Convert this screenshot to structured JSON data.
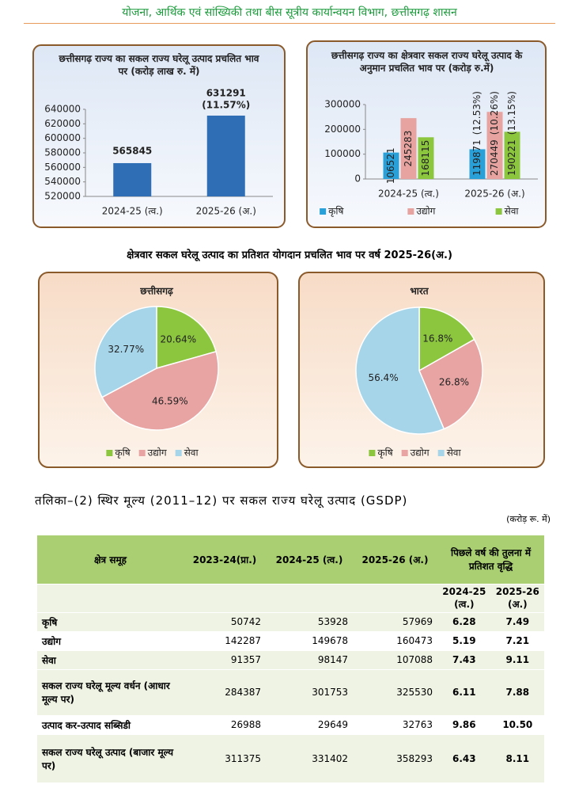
{
  "header": "योजना, आर्थिक एवं सांख्यिकी तथा बीस सूत्रीय कार्यान्वयन विभाग, छत्तीसगढ़ शासन",
  "chart_data": [
    {
      "type": "bar",
      "title": "छत्तीसगढ़ राज्य का सकल राज्य घरेलू उत्पाद प्रचलित भाव पर (करोड़ लाख रु. में)",
      "categories": [
        "2024-25 (त्व.)",
        "2025-26 (अ.)"
      ],
      "values": [
        565845,
        631291
      ],
      "growth_labels": [
        null,
        "(11.57%)"
      ],
      "color": "#2f6db5",
      "ylim": [
        520000,
        640000
      ],
      "yticks": [
        520000,
        540000,
        560000,
        580000,
        600000,
        620000,
        640000
      ]
    },
    {
      "type": "bar",
      "title": "छत्तीसगढ़ राज्य का क्षेत्रवार सकल राज्य घरेलू उत्पाद के अनुमान प्रचलित भाव पर (करोड़ रु.में)",
      "categories": [
        "2024-25 (त्व.)",
        "2025-26 (अ.)"
      ],
      "series": [
        {
          "name": "कृषि",
          "color": "#2aa0d8",
          "values": [
            106521,
            119871
          ],
          "growth_labels": [
            null,
            "(12.53%)"
          ]
        },
        {
          "name": "उद्योग",
          "color": "#e6a3a0",
          "values": [
            245283,
            270449
          ],
          "growth_labels": [
            null,
            "(10.26%)"
          ]
        },
        {
          "name": "सेवा",
          "color": "#8cc63f",
          "values": [
            168115,
            190221
          ],
          "growth_labels": [
            null,
            "(13.15%)"
          ]
        }
      ],
      "ylim": [
        0,
        300000
      ],
      "yticks": [
        0,
        100000,
        200000,
        300000
      ],
      "legend": "bottom"
    },
    {
      "type": "pie",
      "title": "छत्तीसगढ़",
      "categories": [
        "कृषि",
        "उद्योग",
        "सेवा"
      ],
      "values": [
        20.64,
        46.59,
        32.77
      ],
      "value_labels": [
        "20.64%",
        "46.59%",
        "32.77%"
      ],
      "colors": [
        "#8cc63f",
        "#e8a3a3",
        "#a6d5ea"
      ],
      "legend": "bottom"
    },
    {
      "type": "pie",
      "title": "भारत",
      "categories": [
        "कृषि",
        "उद्योग",
        "सेवा"
      ],
      "values": [
        16.8,
        26.8,
        56.4
      ],
      "value_labels": [
        "16.8%",
        "26.8%",
        "56.4%"
      ],
      "colors": [
        "#8cc63f",
        "#e8a3a3",
        "#a6d5ea"
      ],
      "legend": "bottom"
    }
  ],
  "section_title": "क्षेत्रवार सकल घरेलू उत्पाद का प्रतिशत योगदान प्रचलित भाव पर  वर्ष 2025-26(अ.)",
  "table": {
    "title": "तलिका–(2) स्थिर मूल्य (2011–12) पर सकल राज्य घरेलू उत्पाद (GSDP)",
    "unit": "(करोड़ रू. में)",
    "columns": [
      "क्षेत्र समूह",
      "2023-24(प्रा.)",
      "2024-25 (त्व.)",
      "2025-26 (अ.)",
      "पिछले वर्ष की तुलना में प्रतिशत वृद्धि"
    ],
    "subcolumns": [
      "2024-25 (त्व.)",
      "2025-26 (अ.)"
    ],
    "rows": [
      [
        "कृषि",
        "50742",
        "53928",
        "57969",
        "6.28",
        "7.49"
      ],
      [
        "उद्योग",
        "142287",
        "149678",
        "160473",
        "5.19",
        "7.21"
      ],
      [
        "सेवा",
        "91357",
        "98147",
        "107088",
        "7.43",
        "9.11"
      ],
      [
        "सकल राज्य घरेलू मूल्य वर्धन (आधार मूल्य पर)",
        "284387",
        "301753",
        "325530",
        "6.11",
        "7.88"
      ],
      [
        "उत्पाद कर-उत्पाद सब्सिडी",
        "26988",
        "29649",
        "32763",
        "9.86",
        "10.50"
      ],
      [
        "सकल राज्य घरेलू उत्पाद (बाजार मूल्य पर)",
        "311375",
        "331402",
        "358293",
        "6.43",
        "8.11"
      ]
    ]
  }
}
